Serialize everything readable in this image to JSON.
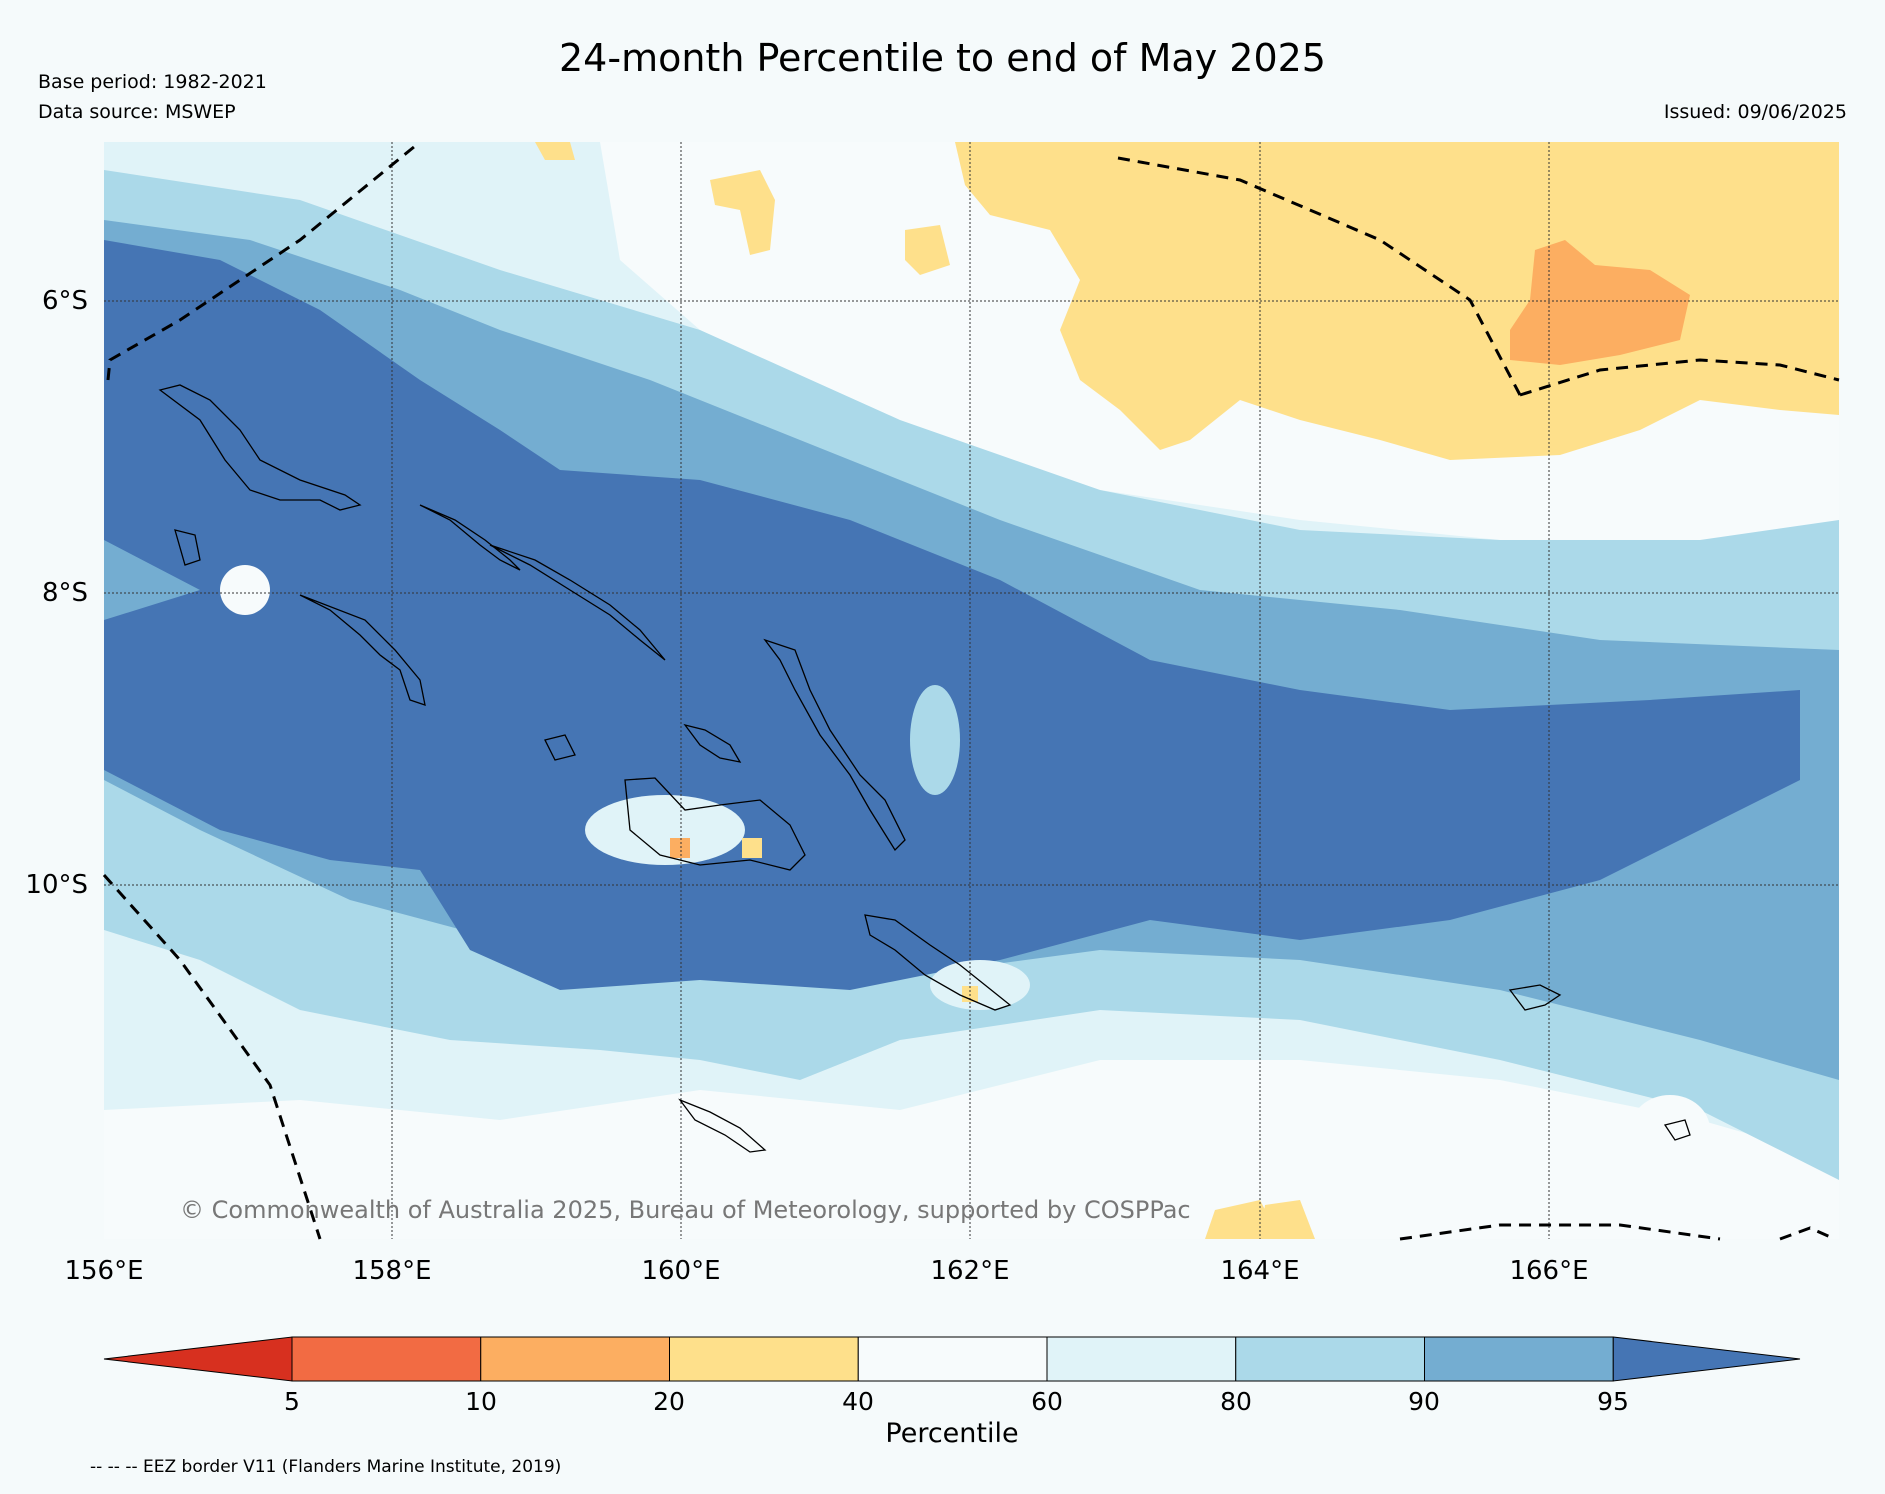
{
  "title": "24-month Percentile to end of May 2025",
  "base_period": "Base period: 1982-2021",
  "data_source": "Data source: MSWEP",
  "issued": "Issued: 09/06/2025",
  "copyright": "© Commonwealth of Australia 2025, Bureau of Meteorology, supported by COSPPac",
  "footnote": "-- -- -- EEZ border V11 (Flanders Marine Institute, 2019)",
  "lat_labels": [
    "6°S",
    "8°S",
    "10°S"
  ],
  "lon_labels": [
    "156°E",
    "158°E",
    "160°E",
    "162°E",
    "164°E",
    "166°E"
  ],
  "colorbar": {
    "label": "Percentile",
    "ticks": [
      "5",
      "10",
      "20",
      "40",
      "60",
      "80",
      "90",
      "95"
    ],
    "colors": [
      "#d7301f",
      "#f26b43",
      "#fcae61",
      "#fee08b",
      "#f7fbfc",
      "#e0f3f8",
      "#abd9e9",
      "#74add1",
      "#4575b4"
    ]
  },
  "legend_colors": {
    "land_outline": "#000000",
    "eez_border": "#000000",
    "background": "#f5fafb"
  }
}
